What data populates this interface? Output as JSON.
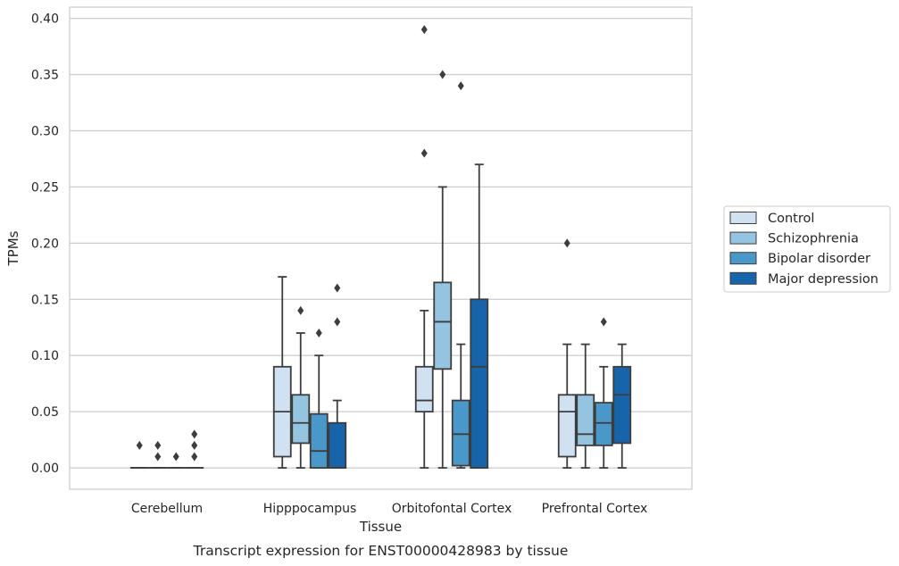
{
  "chart_data": {
    "type": "box",
    "xlabel": "Tissue",
    "ylabel": "TPMs",
    "caption": "Transcript expression for ENST00000428983 by tissue",
    "ylim": [
      -0.019,
      0.41
    ],
    "yticks": [
      "0.00",
      "0.05",
      "0.10",
      "0.15",
      "0.20",
      "0.25",
      "0.30",
      "0.35",
      "0.40"
    ],
    "grid": "horizontal",
    "legend_position": "right",
    "categories": [
      "Cerebellum",
      "Hipppocampus",
      "Orbitofontal Cortex",
      "Prefrontal Cortex"
    ],
    "series": [
      {
        "name": "Control",
        "color": "#d0e1f2",
        "boxes": [
          {
            "whislo": 0,
            "q1": 0,
            "med": 0,
            "q3": 0,
            "whishi": 0,
            "fliers": [
              0.02
            ]
          },
          {
            "whislo": 0,
            "q1": 0.01,
            "med": 0.05,
            "q3": 0.09,
            "whishi": 0.17,
            "fliers": []
          },
          {
            "whislo": 0,
            "q1": 0.05,
            "med": 0.06,
            "q3": 0.09,
            "whishi": 0.14,
            "fliers": [
              0.28,
              0.39
            ]
          },
          {
            "whislo": 0,
            "q1": 0.01,
            "med": 0.05,
            "q3": 0.065,
            "whishi": 0.11,
            "fliers": [
              0.2
            ]
          }
        ]
      },
      {
        "name": "Schizophrenia",
        "color": "#94c4df",
        "boxes": [
          {
            "whislo": 0,
            "q1": 0,
            "med": 0,
            "q3": 0,
            "whishi": 0,
            "fliers": [
              0.01,
              0.02
            ]
          },
          {
            "whislo": 0,
            "q1": 0.022,
            "med": 0.04,
            "q3": 0.065,
            "whishi": 0.12,
            "fliers": [
              0.14
            ]
          },
          {
            "whislo": 0,
            "q1": 0.088,
            "med": 0.13,
            "q3": 0.165,
            "whishi": 0.25,
            "fliers": [
              0.35
            ]
          },
          {
            "whislo": 0,
            "q1": 0.02,
            "med": 0.03,
            "q3": 0.065,
            "whishi": 0.11,
            "fliers": []
          }
        ]
      },
      {
        "name": "Bipolar disorder",
        "color": "#4a98c9",
        "boxes": [
          {
            "whislo": 0,
            "q1": 0,
            "med": 0,
            "q3": 0,
            "whishi": 0,
            "fliers": [
              0.01
            ]
          },
          {
            "whislo": 0,
            "q1": 0,
            "med": 0.015,
            "q3": 0.048,
            "whishi": 0.1,
            "fliers": [
              0.12
            ]
          },
          {
            "whislo": 0,
            "q1": 0.002,
            "med": 0.03,
            "q3": 0.06,
            "whishi": 0.11,
            "fliers": [
              0.34
            ]
          },
          {
            "whislo": 0,
            "q1": 0.02,
            "med": 0.04,
            "q3": 0.058,
            "whishi": 0.09,
            "fliers": [
              0.13
            ]
          }
        ]
      },
      {
        "name": "Major depression",
        "color": "#1764ab",
        "boxes": [
          {
            "whislo": 0,
            "q1": 0,
            "med": 0,
            "q3": 0,
            "whishi": 0,
            "fliers": [
              0.01,
              0.02,
              0.03
            ]
          },
          {
            "whislo": 0,
            "q1": 0,
            "med": 0,
            "q3": 0.04,
            "whishi": 0.06,
            "fliers": [
              0.13,
              0.16
            ]
          },
          {
            "whislo": 0,
            "q1": 0,
            "med": 0.09,
            "q3": 0.15,
            "whishi": 0.27,
            "fliers": []
          },
          {
            "whislo": 0,
            "q1": 0.022,
            "med": 0.065,
            "q3": 0.09,
            "whishi": 0.11,
            "fliers": []
          }
        ]
      }
    ]
  }
}
